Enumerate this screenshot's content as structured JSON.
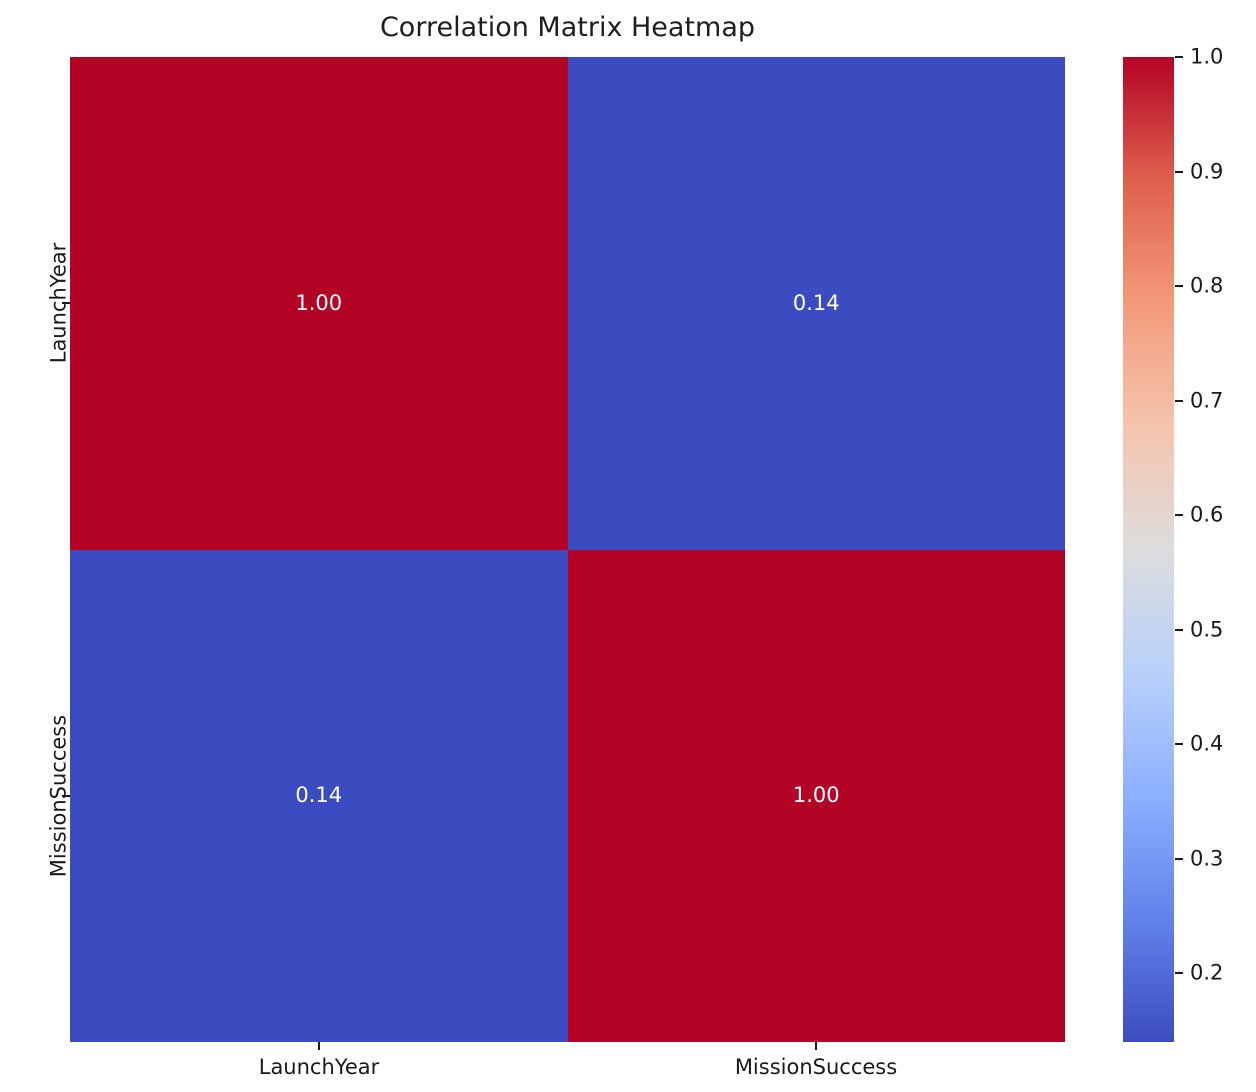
{
  "chart_data": {
    "type": "heatmap",
    "title": "Correlation Matrix Heatmap",
    "x_categories": [
      "LaunchYear",
      "MissionSuccess"
    ],
    "y_categories": [
      "LaunchYear",
      "MissionSuccess"
    ],
    "matrix": [
      [
        1.0,
        0.14
      ],
      [
        0.14,
        1.0
      ]
    ],
    "cell_labels": [
      [
        "1.00",
        "0.14"
      ],
      [
        "0.14",
        "1.00"
      ]
    ],
    "colormap": "coolwarm",
    "vmin": 0.14,
    "vmax": 1.0,
    "colorbar_tick_values": [
      1.0,
      0.9,
      0.8,
      0.7,
      0.6,
      0.5,
      0.4,
      0.3,
      0.2
    ],
    "colorbar_tick_labels": [
      "1.0",
      "0.9",
      "0.8",
      "0.7",
      "0.6",
      "0.5",
      "0.4",
      "0.3",
      "0.2"
    ],
    "colorbar_position": "right",
    "grid": false,
    "colors": {
      "max_red": "#b40426",
      "min_blue": "#3b4cc0",
      "annotation_text": "#ffffff",
      "axis_text": "#1a1a1a",
      "background": "#ffffff"
    },
    "colormap_stops": [
      {
        "p": 0.0,
        "color": "#3b4cc0"
      },
      {
        "p": 0.125,
        "color": "#6282ea"
      },
      {
        "p": 0.25,
        "color": "#8db0fe"
      },
      {
        "p": 0.375,
        "color": "#b8d0f9"
      },
      {
        "p": 0.5,
        "color": "#dddddd"
      },
      {
        "p": 0.625,
        "color": "#f5c4ad"
      },
      {
        "p": 0.75,
        "color": "#f49a7b"
      },
      {
        "p": 0.875,
        "color": "#de604d"
      },
      {
        "p": 1.0,
        "color": "#b40426"
      }
    ]
  }
}
